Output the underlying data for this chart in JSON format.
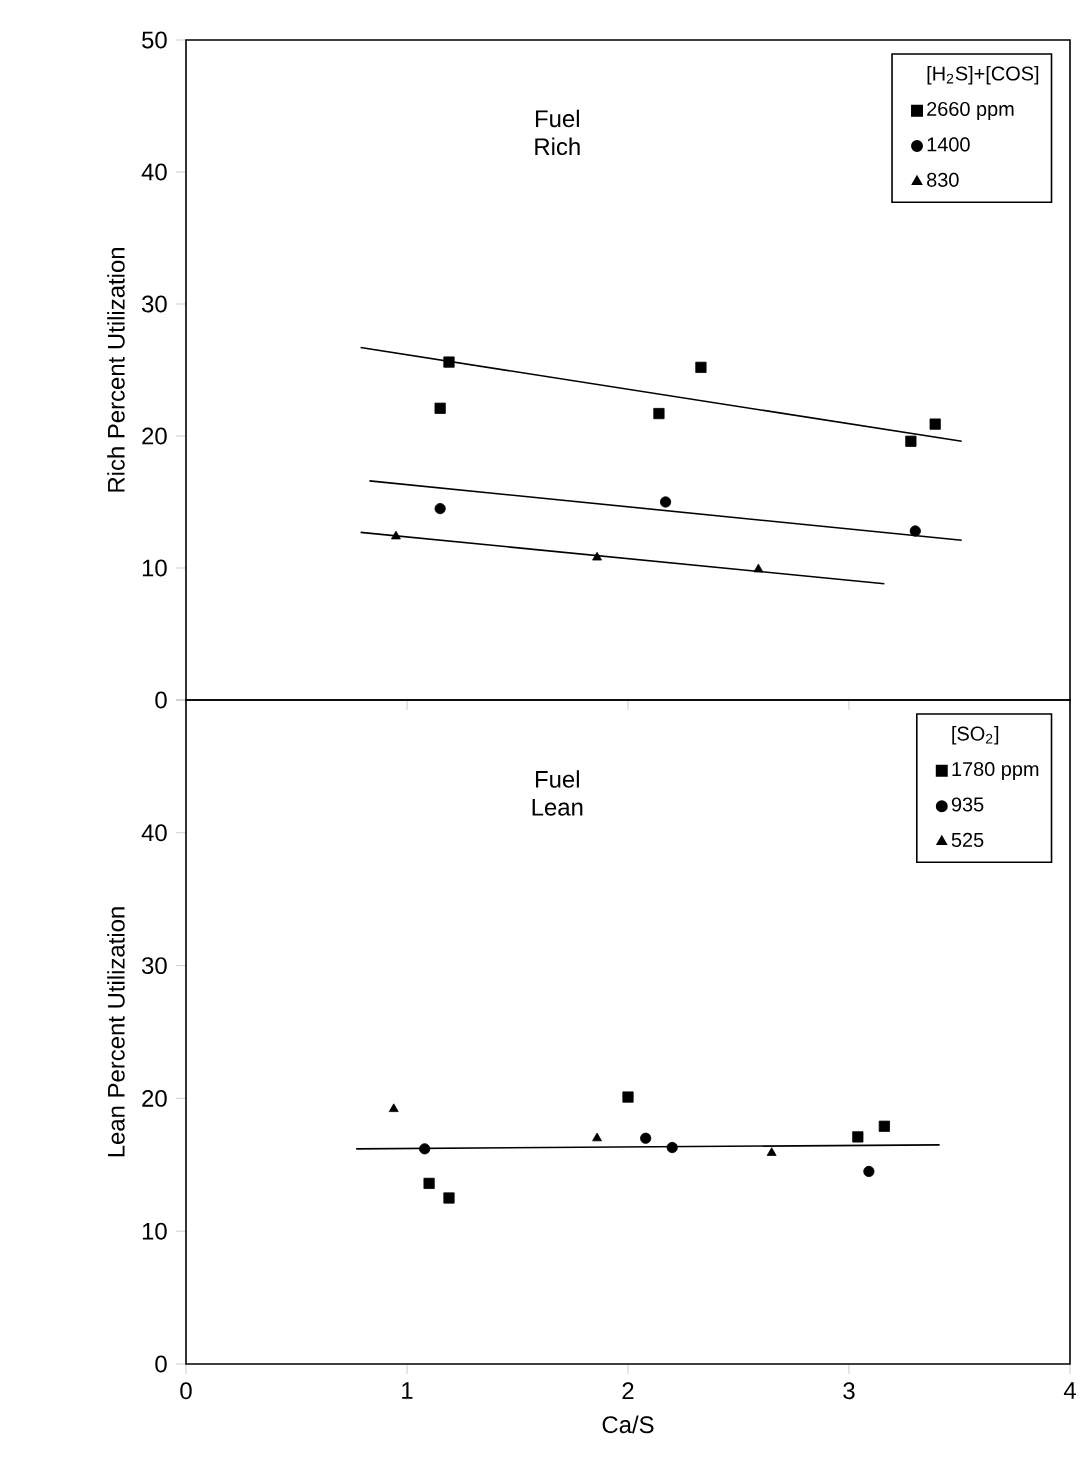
{
  "chart_data": [
    {
      "type": "scatter",
      "ylabel": "Rich  Percent Utilization",
      "legend_title": "[H$_{2}$S]+[COS]",
      "annotations": [
        "Fuel Rich"
      ],
      "legend": "top right",
      "tick_labels": "y",
      "xlim": [
        0,
        4
      ],
      "xticks": [
        0,
        1,
        2,
        3,
        4
      ],
      "ylim": [
        0,
        50
      ],
      "yticks": [
        0,
        10,
        20,
        30,
        40,
        50
      ],
      "series": [
        {
          "name": "2660 ppm",
          "color": "#000000",
          "marker": "square",
          "x": [
            1.15,
            1.19,
            2.14,
            2.33,
            3.28,
            3.39
          ],
          "values": [
            22.1,
            25.6,
            21.7,
            25.2,
            19.6,
            20.9
          ]
        },
        {
          "name": "1400",
          "color": "#000000",
          "marker": "circle",
          "x": [
            1.15,
            2.17,
            3.3
          ],
          "values": [
            14.5,
            15.0,
            12.8
          ]
        },
        {
          "name": "830",
          "color": "#000000",
          "marker": "triangle",
          "x": [
            0.95,
            1.86,
            2.59
          ],
          "values": [
            12.4,
            10.8,
            9.9
          ]
        },
        {
          "type": "line",
          "color": "#000000",
          "line_style": "solid",
          "marker": "none",
          "x": [
            0.79,
            3.51
          ],
          "values": [
            26.7,
            19.6
          ]
        },
        {
          "type": "line",
          "color": "#000000",
          "line_style": "solid",
          "marker": "none",
          "x": [
            0.83,
            3.51
          ],
          "values": [
            16.6,
            12.1
          ]
        },
        {
          "type": "line",
          "color": "#000000",
          "line_style": "solid",
          "marker": "none",
          "x": [
            0.79,
            3.16
          ],
          "values": [
            12.7,
            8.8
          ]
        }
      ]
    },
    {
      "type": "scatter",
      "xlabel": "Ca/S",
      "ylabel": "Lean  Percent Utilization",
      "legend_title": "[SO$_{2}$]",
      "annotations": [
        "Fuel Lean"
      ],
      "legend": "top right",
      "xlim": [
        0,
        4
      ],
      "xticks": [
        0,
        1,
        2,
        3,
        4
      ],
      "ylim": [
        0,
        50
      ],
      "yticks": [
        0,
        10,
        20,
        30,
        40,
        {
          "value": 50,
          "label": null
        }
      ],
      "series": [
        {
          "name": "1780 ppm",
          "color": "#000000",
          "marker": "square",
          "x": [
            1.1,
            1.19,
            2.0,
            3.04,
            3.16
          ],
          "values": [
            13.6,
            12.5,
            20.1,
            17.1,
            17.9
          ]
        },
        {
          "name": "935",
          "color": "#000000",
          "marker": "circle",
          "x": [
            1.08,
            2.08,
            2.2,
            3.09
          ],
          "values": [
            16.2,
            17.0,
            16.3,
            14.5
          ]
        },
        {
          "name": "525",
          "color": "#000000",
          "marker": "triangle",
          "x": [
            0.94,
            1.86,
            2.65
          ],
          "values": [
            19.2,
            17.0,
            15.9
          ]
        },
        {
          "type": "line",
          "color": "#000000",
          "line_style": "solid",
          "marker": "none",
          "x": [
            0.77,
            3.41
          ],
          "values": [
            16.2,
            16.5
          ]
        }
      ]
    }
  ]
}
